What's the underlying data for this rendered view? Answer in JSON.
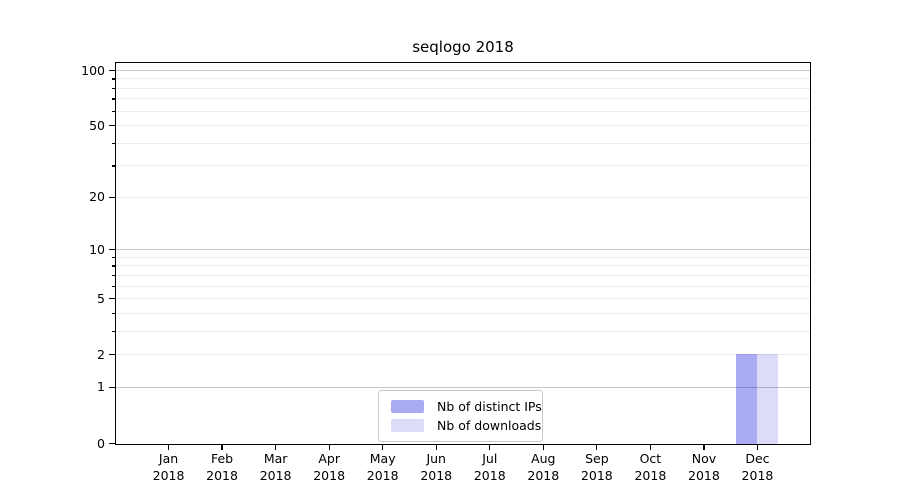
{
  "chart_data": {
    "type": "bar",
    "title": "seqlogo 2018",
    "categories": [
      "Jan 2018",
      "Feb 2018",
      "Mar 2018",
      "Apr 2018",
      "May 2018",
      "Jun 2018",
      "Jul 2018",
      "Aug 2018",
      "Sep 2018",
      "Oct 2018",
      "Nov 2018",
      "Dec 2018"
    ],
    "x_tick_labels": [
      [
        "Jan",
        "2018"
      ],
      [
        "Feb",
        "2018"
      ],
      [
        "Mar",
        "2018"
      ],
      [
        "Apr",
        "2018"
      ],
      [
        "May",
        "2018"
      ],
      [
        "Jun",
        "2018"
      ],
      [
        "Jul",
        "2018"
      ],
      [
        "Aug",
        "2018"
      ],
      [
        "Sep",
        "2018"
      ],
      [
        "Oct",
        "2018"
      ],
      [
        "Nov",
        "2018"
      ],
      [
        "Dec",
        "2018"
      ]
    ],
    "series": [
      {
        "name": "Nb of distinct IPs",
        "color": "#ababf4",
        "values": [
          0,
          0,
          0,
          0,
          0,
          0,
          0,
          0,
          0,
          0,
          0,
          2
        ]
      },
      {
        "name": "Nb of downloads",
        "color": "#dcdcf8",
        "values": [
          0,
          0,
          0,
          0,
          0,
          0,
          0,
          0,
          0,
          0,
          0,
          2
        ]
      }
    ],
    "yscale": "log1p",
    "ylim": [
      0,
      109
    ],
    "xlabel": "",
    "ylabel": "",
    "y_tick_labels": [
      0,
      1,
      2,
      5,
      10,
      20,
      50,
      100
    ],
    "y_decade_gridlines": [
      1,
      10,
      100
    ],
    "y_minor_gridlines": [
      2,
      3,
      4,
      5,
      6,
      7,
      8,
      9,
      20,
      30,
      40,
      50,
      60,
      70,
      80,
      90
    ],
    "grid": true,
    "grid_above_bars": true,
    "legend": {
      "position": "lower center",
      "items": [
        {
          "label": "Nb of distinct IPs",
          "color": "#ababf4"
        },
        {
          "label": "Nb of downloads",
          "color": "#dcdcf8"
        }
      ]
    }
  },
  "colors": {
    "background": "#ffffff",
    "spine": "#000000",
    "grid_major": "#c8c8c8",
    "grid_minor": "#ececec",
    "bar_distinct_ips": "#ababf4",
    "bar_downloads": "#dcdcf8"
  }
}
